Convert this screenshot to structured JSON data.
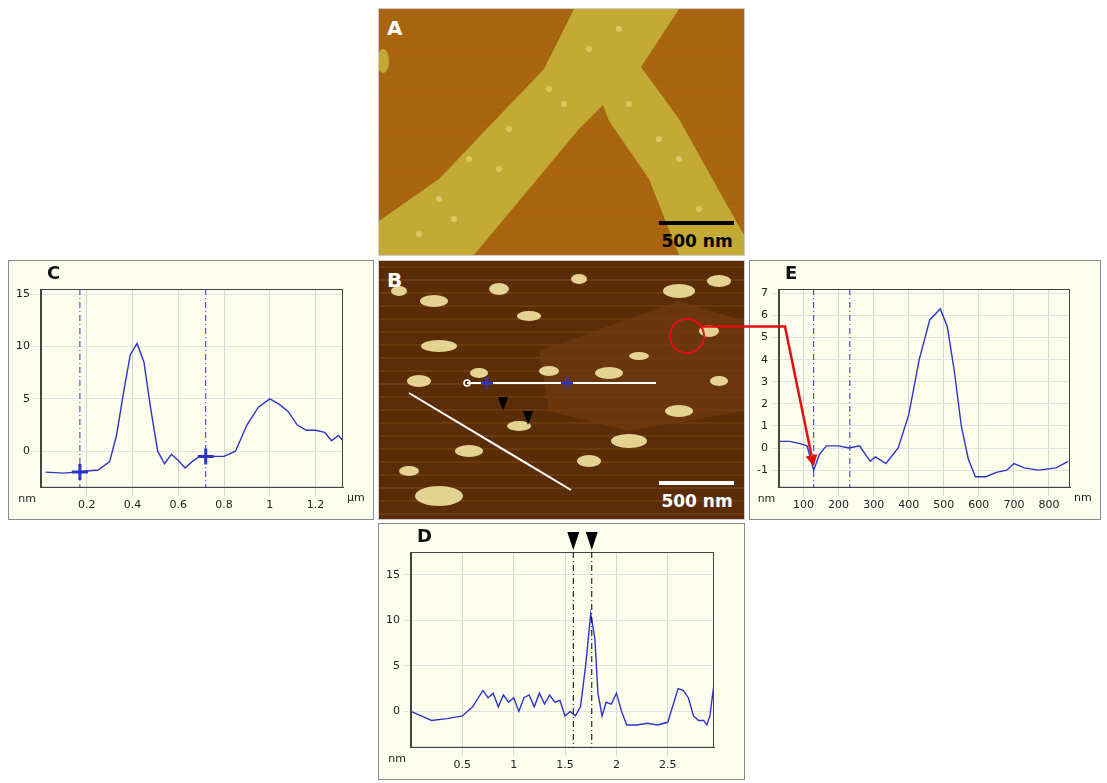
{
  "images": [
    {
      "panel": "A",
      "scale_bar": "500 nm"
    },
    {
      "panel": "B",
      "scale_bar": "500 nm"
    }
  ],
  "chart_data": [
    {
      "panel": "C",
      "type": "line",
      "color": "#2b35c8",
      "grid": true,
      "x": [
        0.02,
        0.1,
        0.15,
        0.2,
        0.25,
        0.3,
        0.33,
        0.36,
        0.39,
        0.42,
        0.45,
        0.48,
        0.51,
        0.54,
        0.57,
        0.6,
        0.63,
        0.66,
        0.7,
        0.75,
        0.8,
        0.85,
        0.9,
        0.95,
        1.0,
        1.04,
        1.08,
        1.12,
        1.16,
        1.2,
        1.24,
        1.27,
        1.3,
        1.32
      ],
      "values": [
        -2,
        -2.1,
        -2,
        -1.9,
        -1.8,
        -1,
        1.5,
        5.5,
        9.2,
        10.3,
        8.5,
        4,
        0,
        -1.2,
        -0.3,
        -0.9,
        -1.6,
        -1,
        -0.4,
        -0.5,
        -0.5,
        0,
        2.5,
        4.2,
        5,
        4.5,
        3.8,
        2.5,
        2,
        2,
        1.8,
        1,
        1.5,
        1
      ],
      "xlim": [
        0,
        1.32
      ],
      "xticks": [
        0.2,
        0.4,
        0.6,
        0.8,
        1,
        1.2
      ],
      "ylim": [
        -3.5,
        15.5
      ],
      "yticks": [
        0,
        5,
        10,
        15
      ],
      "x_label": "µm",
      "y_label": "nm",
      "cursors": [
        {
          "x": 0.17,
          "y": -2,
          "marker": "plus",
          "color": "#2b35c8"
        },
        {
          "x": 0.72,
          "y": -0.5,
          "marker": "plus",
          "color": "#2b35c8"
        }
      ]
    },
    {
      "panel": "D",
      "type": "line",
      "color": "#2b35c8",
      "grid": true,
      "x": [
        0,
        0.1,
        0.2,
        0.35,
        0.5,
        0.6,
        0.7,
        0.75,
        0.8,
        0.85,
        0.9,
        0.95,
        1.0,
        1.05,
        1.1,
        1.15,
        1.2,
        1.25,
        1.3,
        1.35,
        1.4,
        1.45,
        1.5,
        1.55,
        1.6,
        1.65,
        1.7,
        1.75,
        1.79,
        1.82,
        1.86,
        1.9,
        1.95,
        2.0,
        2.05,
        2.1,
        2.2,
        2.3,
        2.4,
        2.5,
        2.6,
        2.65,
        2.7,
        2.75,
        2.8,
        2.85,
        2.88,
        2.91,
        2.95
      ],
      "values": [
        0,
        -0.5,
        -1,
        -0.8,
        -0.5,
        0.5,
        2.3,
        1.5,
        2,
        0.5,
        1.8,
        1,
        1.5,
        0,
        1.5,
        1.8,
        0.5,
        2,
        0.8,
        1.8,
        1,
        1.2,
        -0.5,
        0,
        -0.5,
        0.5,
        5,
        10.7,
        8,
        2,
        -0.5,
        1,
        0.8,
        2,
        0,
        -1.5,
        -1.5,
        -1.3,
        -1.5,
        -1.2,
        2.5,
        2.3,
        1.5,
        -0.5,
        -1,
        -1,
        -1.5,
        -0.5,
        3
      ],
      "xlim": [
        0,
        2.95
      ],
      "xticks": [
        0.5,
        1,
        1.5,
        2,
        2.5
      ],
      "ylim": [
        -4,
        17.5
      ],
      "yticks": [
        0,
        5,
        10,
        15
      ],
      "y_label": "nm",
      "cursors": [
        {
          "x": 1.58,
          "marker": "triangle",
          "color": "#000000"
        },
        {
          "x": 1.76,
          "marker": "triangle",
          "color": "#000000"
        }
      ]
    },
    {
      "panel": "E",
      "type": "line",
      "color": "#2b35c8",
      "grid": true,
      "x": [
        30,
        60,
        90,
        110,
        129,
        145,
        165,
        200,
        230,
        260,
        290,
        305,
        335,
        370,
        400,
        430,
        460,
        490,
        510,
        530,
        550,
        570,
        590,
        620,
        650,
        680,
        700,
        730,
        770,
        820,
        855
      ],
      "values": [
        0.3,
        0.3,
        0.2,
        0.1,
        -1,
        -0.3,
        0.1,
        0.1,
        0,
        0.1,
        -0.6,
        -0.4,
        -0.7,
        0,
        1.5,
        4,
        5.8,
        6.3,
        5.5,
        3.5,
        1,
        -0.5,
        -1.3,
        -1.3,
        -1.1,
        -1,
        -0.7,
        -0.9,
        -1,
        -0.9,
        -0.6
      ],
      "xlim": [
        30,
        860
      ],
      "xticks": [
        100,
        200,
        300,
        400,
        500,
        600,
        700,
        800
      ],
      "ylim": [
        -1.8,
        7.2
      ],
      "yticks": [
        -1,
        0,
        1,
        2,
        3,
        4,
        5,
        6,
        7
      ],
      "x_label": "nm",
      "y_label": "nm",
      "cursors": [
        {
          "x": 129
        },
        {
          "x": 232
        }
      ]
    }
  ]
}
